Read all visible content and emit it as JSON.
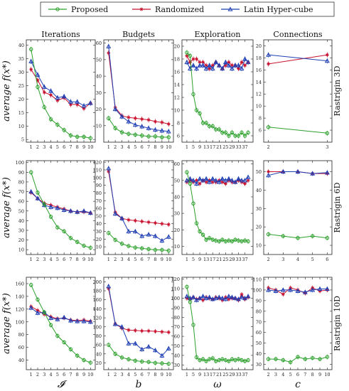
{
  "legend": [
    {
      "name": "Proposed",
      "color": "#2ca02c",
      "marker": "circle"
    },
    {
      "name": "Randomized",
      "color": "#c8102e",
      "marker": "star"
    },
    {
      "name": "Latin Hyper-cube",
      "color": "#1f3fb4",
      "marker": "triangle"
    }
  ],
  "column_titles": [
    "Iterations",
    "Budgets",
    "Exploration",
    "Connections"
  ],
  "row_titles": [
    "Rastrigin 3D",
    "Rastrigin 6D",
    "Rastrigin 10D"
  ],
  "ylabel": "average f(x*)",
  "xlabels": [
    "𝓘",
    "b",
    "ω",
    "c"
  ],
  "chart_data": [
    {
      "type": "line",
      "row": 0,
      "col": 0,
      "x": [
        1,
        2,
        3,
        4,
        5,
        6,
        7,
        8,
        9,
        10
      ],
      "xticks": [
        1,
        2,
        3,
        4,
        5,
        6,
        7,
        8,
        9,
        10
      ],
      "ylim": [
        4,
        42
      ],
      "yticks": [
        5,
        10,
        15,
        20,
        25,
        30,
        35,
        40
      ],
      "series": [
        {
          "name": "Proposed",
          "values": [
            38.5,
            24.5,
            17,
            12.5,
            10.5,
            8.5,
            6.5,
            6,
            6,
            5.5
          ]
        },
        {
          "name": "Randomized",
          "values": [
            31,
            27,
            22.5,
            21.5,
            19.5,
            20.5,
            18,
            18,
            16.5,
            18.5
          ]
        },
        {
          "name": "Latin Hyper-cube",
          "values": [
            34,
            29,
            24.5,
            23,
            20.5,
            21,
            19,
            19,
            17.5,
            18.5
          ]
        }
      ]
    },
    {
      "type": "line",
      "row": 0,
      "col": 1,
      "x": [
        1,
        2,
        3,
        4,
        5,
        6,
        7,
        8,
        9,
        10
      ],
      "xticks": [
        1,
        2,
        3,
        4,
        5,
        6,
        7,
        8,
        9,
        10
      ],
      "ylim": [
        0,
        62
      ],
      "yticks": [
        10,
        20,
        30,
        40,
        50,
        60
      ],
      "series": [
        {
          "name": "Proposed",
          "values": [
            14.5,
            8.5,
            6,
            5,
            4.5,
            4,
            3.5,
            3.5,
            3,
            3
          ]
        },
        {
          "name": "Randomized",
          "values": [
            54,
            21,
            16,
            15,
            14.5,
            14,
            13.5,
            12.5,
            12,
            11
          ]
        },
        {
          "name": "Latin Hyper-cube",
          "values": [
            58,
            20,
            15.5,
            12.5,
            10.5,
            9.5,
            8.5,
            7.5,
            7,
            6.5
          ]
        }
      ]
    },
    {
      "type": "line",
      "row": 0,
      "col": 2,
      "x": [
        1,
        3,
        5,
        7,
        9,
        11,
        13,
        15,
        17,
        19,
        21,
        23,
        25,
        27,
        29,
        31,
        33,
        35,
        37,
        39
      ],
      "xticks": [
        1,
        5,
        9,
        13,
        17,
        21,
        25,
        29,
        33,
        37
      ],
      "ylim": [
        5,
        21
      ],
      "yticks": [
        6,
        8,
        10,
        12,
        14,
        16,
        18,
        20
      ],
      "series": [
        {
          "name": "Proposed",
          "values": [
            19,
            18.5,
            12.5,
            10,
            9.5,
            8,
            8,
            7.5,
            7.5,
            7,
            7,
            6.5,
            6.5,
            6,
            6.5,
            6,
            6,
            6.5,
            6,
            6.5
          ]
        },
        {
          "name": "Randomized",
          "values": [
            18.5,
            17.5,
            18,
            18,
            17.5,
            17.5,
            17,
            16.5,
            17,
            17.5,
            17,
            16.5,
            17,
            17.5,
            17,
            17,
            16.5,
            17.5,
            17,
            17.5
          ]
        },
        {
          "name": "Latin Hyper-cube",
          "values": [
            17.5,
            16.5,
            17,
            16.5,
            17,
            17,
            16.5,
            17,
            16.5,
            17.5,
            17,
            16.5,
            17.5,
            17,
            16.5,
            17,
            17,
            16.5,
            18,
            17.5
          ]
        }
      ]
    },
    {
      "type": "line",
      "row": 0,
      "col": 3,
      "x": [
        2,
        3
      ],
      "xticks": [
        2,
        3
      ],
      "ylim": [
        4,
        21
      ],
      "yticks": [
        6,
        8,
        10,
        12,
        14,
        16,
        18,
        20
      ],
      "series": [
        {
          "name": "Proposed",
          "values": [
            6.5,
            5.5
          ]
        },
        {
          "name": "Randomized",
          "values": [
            17,
            18.5
          ]
        },
        {
          "name": "Latin Hyper-cube",
          "values": [
            18.5,
            17.5
          ]
        }
      ]
    },
    {
      "type": "line",
      "row": 1,
      "col": 0,
      "x": [
        1,
        2,
        3,
        4,
        5,
        6,
        7,
        8,
        9,
        10
      ],
      "xticks": [
        1,
        2,
        3,
        4,
        5,
        6,
        7,
        8,
        9,
        10
      ],
      "ylim": [
        5,
        102
      ],
      "yticks": [
        10,
        20,
        30,
        40,
        50,
        60,
        70,
        80,
        90,
        100
      ],
      "series": [
        {
          "name": "Proposed",
          "values": [
            90,
            69,
            57,
            44,
            33,
            29,
            22,
            18,
            14,
            12
          ]
        },
        {
          "name": "Randomized",
          "values": [
            69,
            63,
            58,
            56,
            54,
            52,
            50,
            49,
            49,
            48
          ]
        },
        {
          "name": "Latin Hyper-cube",
          "values": [
            70,
            63,
            56,
            54,
            53,
            51,
            50,
            49,
            50,
            48
          ]
        }
      ]
    },
    {
      "type": "line",
      "row": 1,
      "col": 1,
      "x": [
        1,
        2,
        3,
        4,
        5,
        6,
        7,
        8,
        9,
        10
      ],
      "xticks": [
        1,
        2,
        3,
        4,
        5,
        6,
        7,
        8,
        9,
        10
      ],
      "ylim": [
        0,
        122
      ],
      "yticks": [
        10,
        20,
        30,
        40,
        50,
        60,
        70,
        80,
        90,
        100,
        110,
        120
      ],
      "series": [
        {
          "name": "Proposed",
          "values": [
            28,
            19,
            14,
            11,
            9,
            8,
            7,
            6,
            6,
            5
          ]
        },
        {
          "name": "Randomized",
          "values": [
            108,
            55,
            47,
            45,
            44,
            43,
            42,
            41,
            40,
            39
          ]
        },
        {
          "name": "Latin Hyper-cube",
          "values": [
            112,
            53,
            47,
            30,
            30,
            24,
            26,
            24,
            18,
            23
          ]
        }
      ]
    },
    {
      "type": "line",
      "row": 1,
      "col": 2,
      "x": [
        1,
        3,
        5,
        7,
        9,
        11,
        13,
        15,
        17,
        19,
        21,
        23,
        25,
        27,
        29,
        31,
        33,
        35,
        37,
        39
      ],
      "xticks": [
        1,
        5,
        9,
        13,
        17,
        21,
        25,
        29,
        33,
        37
      ],
      "ylim": [
        5,
        62
      ],
      "yticks": [
        10,
        20,
        30,
        40,
        50,
        60
      ],
      "series": [
        {
          "name": "Proposed",
          "values": [
            55,
            48,
            36,
            24,
            19,
            17,
            14,
            15,
            14,
            13.5,
            13,
            14,
            13,
            13.5,
            13,
            14,
            13.5,
            13,
            13.5,
            13
          ]
        },
        {
          "name": "Randomized",
          "values": [
            49,
            50,
            49,
            50,
            48,
            50,
            49,
            50,
            49,
            49,
            50,
            49,
            48,
            50,
            49,
            49,
            50,
            49,
            48,
            50
          ]
        },
        {
          "name": "Latin Hyper-cube",
          "values": [
            50,
            51,
            50,
            48,
            51,
            50,
            51,
            49,
            51,
            50,
            49,
            51,
            50,
            51,
            50,
            49,
            51,
            50,
            50,
            52
          ]
        }
      ]
    },
    {
      "type": "line",
      "row": 1,
      "col": 3,
      "x": [
        2,
        3,
        4,
        5,
        6
      ],
      "xticks": [
        2,
        3,
        4,
        5,
        6
      ],
      "ylim": [
        5,
        56
      ],
      "yticks": [
        10,
        20,
        30,
        40,
        50
      ],
      "series": [
        {
          "name": "Proposed",
          "values": [
            16,
            15,
            14,
            15,
            14
          ]
        },
        {
          "name": "Randomized",
          "values": [
            50,
            50,
            50,
            49,
            49
          ]
        },
        {
          "name": "Latin Hyper-cube",
          "values": [
            48,
            50,
            50,
            49,
            49.5
          ]
        }
      ]
    },
    {
      "type": "line",
      "row": 2,
      "col": 0,
      "x": [
        1,
        2,
        3,
        4,
        5,
        6,
        7,
        8,
        9,
        10
      ],
      "xticks": [
        1,
        2,
        3,
        4,
        5,
        6,
        7,
        8,
        9,
        10
      ],
      "ylim": [
        25,
        170
      ],
      "yticks": [
        40,
        60,
        80,
        100,
        120,
        140,
        160
      ],
      "series": [
        {
          "name": "Proposed",
          "values": [
            158,
            135,
            115,
            95,
            78,
            68,
            57,
            47,
            40,
            36
          ]
        },
        {
          "name": "Randomized",
          "values": [
            124,
            118,
            112,
            108,
            105,
            106,
            103,
            102,
            103,
            101
          ]
        },
        {
          "name": "Latin Hyper-cube",
          "values": [
            122,
            114,
            115,
            106,
            104,
            107,
            102,
            101,
            101,
            100
          ]
        }
      ]
    },
    {
      "type": "line",
      "row": 2,
      "col": 1,
      "x": [
        1,
        2,
        3,
        4,
        5,
        6,
        7,
        8,
        9,
        10
      ],
      "xticks": [
        1,
        2,
        3,
        4,
        5,
        6,
        7,
        8,
        9,
        10
      ],
      "ylim": [
        5,
        210
      ],
      "yticks": [
        20,
        40,
        60,
        80,
        100,
        120,
        140,
        160,
        180,
        200
      ],
      "series": [
        {
          "name": "Proposed",
          "values": [
            60,
            40,
            32,
            28,
            25,
            23,
            22,
            20,
            19,
            18
          ]
        },
        {
          "name": "Randomized",
          "values": [
            185,
            107,
            97,
            93,
            92,
            91,
            91,
            90,
            89,
            88
          ]
        },
        {
          "name": "Latin Hyper-cube",
          "values": [
            190,
            106,
            100,
            63,
            63,
            50,
            56,
            48,
            36,
            52
          ]
        }
      ]
    },
    {
      "type": "line",
      "row": 2,
      "col": 2,
      "x": [
        1,
        3,
        5,
        7,
        9,
        11,
        13,
        15,
        17,
        19,
        21,
        23,
        25,
        27,
        29,
        31,
        33,
        35,
        37,
        39
      ],
      "xticks": [
        1,
        5,
        9,
        13,
        17,
        21,
        25,
        29,
        33,
        37
      ],
      "ylim": [
        25,
        122
      ],
      "yticks": [
        30,
        40,
        50,
        60,
        70,
        80,
        90,
        100,
        110,
        120
      ],
      "series": [
        {
          "name": "Proposed",
          "values": [
            112,
            96,
            72,
            38,
            35,
            36,
            34,
            36,
            37,
            34,
            35,
            36,
            35,
            34,
            36,
            35,
            36,
            35,
            34,
            35
          ]
        },
        {
          "name": "Randomized",
          "values": [
            100,
            99,
            101,
            99,
            100,
            98,
            101,
            100,
            99,
            101,
            100,
            98,
            101,
            99,
            100,
            100,
            98,
            104,
            99,
            101
          ]
        },
        {
          "name": "Latin Hyper-cube",
          "values": [
            102,
            100,
            101,
            98,
            100,
            102,
            100,
            101,
            99,
            100,
            101,
            100,
            99,
            102,
            101,
            100,
            99,
            101,
            100,
            102
          ]
        }
      ]
    },
    {
      "type": "line",
      "row": 2,
      "col": 3,
      "x": [
        2,
        3,
        4,
        5,
        6,
        7,
        8,
        9,
        10
      ],
      "xticks": [
        2,
        3,
        4,
        5,
        6,
        7,
        8,
        9,
        10
      ],
      "ylim": [
        25,
        112
      ],
      "yticks": [
        30,
        40,
        50,
        60,
        70,
        80,
        90,
        100,
        110
      ],
      "series": [
        {
          "name": "Proposed",
          "values": [
            35,
            35,
            34,
            32,
            37,
            35,
            36,
            35,
            37
          ]
        },
        {
          "name": "Randomized",
          "values": [
            102,
            100,
            96,
            102,
            100,
            97,
            102,
            99,
            100
          ]
        },
        {
          "name": "Latin Hyper-cube",
          "values": [
            100,
            99,
            100,
            100,
            99,
            98,
            100,
            101,
            101
          ]
        }
      ]
    }
  ]
}
